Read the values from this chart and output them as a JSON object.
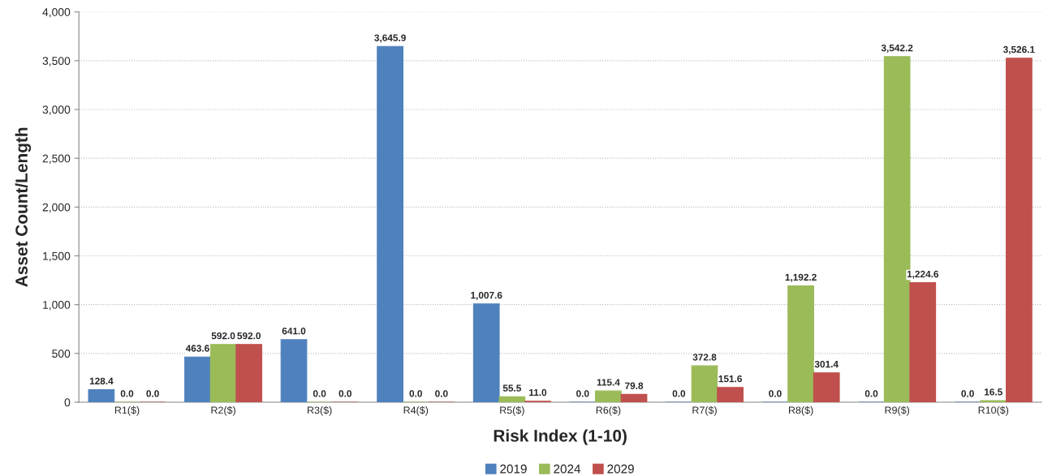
{
  "chart_data": {
    "type": "bar",
    "xlabel": "Risk Index (1-10)",
    "ylabel": "Asset Count/Length",
    "categories": [
      "R1($)",
      "R2($)",
      "R3($)",
      "R4($)",
      "R5($)",
      "R6($)",
      "R7($)",
      "R8($)",
      "R9($)",
      "R10($)"
    ],
    "series": [
      {
        "name": "2019",
        "color": "#4f81bd",
        "values": [
          128.4,
          463.6,
          641.0,
          3645.9,
          1007.6,
          0.0,
          0.0,
          0.0,
          0.0,
          0.0
        ],
        "value_labels": [
          "128.4",
          "463.6",
          "641.0",
          "3,645.9",
          "1,007.6",
          "0.0",
          "0.0",
          "0.0",
          "0.0",
          "0.0"
        ]
      },
      {
        "name": "2024",
        "color": "#9bbb59",
        "values": [
          0.0,
          592.0,
          0.0,
          0.0,
          55.5,
          115.4,
          372.8,
          1192.2,
          3542.2,
          16.5
        ],
        "value_labels": [
          "0.0",
          "592.0",
          "0.0",
          "0.0",
          "55.5",
          "115.4",
          "372.8",
          "1,192.2",
          "3,542.2",
          "16.5"
        ]
      },
      {
        "name": "2029",
        "color": "#c0504d",
        "values": [
          0.0,
          592.0,
          0.0,
          0.0,
          11.0,
          79.8,
          151.6,
          301.4,
          1224.6,
          3526.1
        ],
        "value_labels": [
          "0.0",
          "592.0",
          "0.0",
          "0.0",
          "11.0",
          "79.8",
          "151.6",
          "301.4",
          "1,224.6",
          "3,526.1"
        ]
      }
    ],
    "ylim": [
      0,
      4000
    ],
    "yticks": [
      0,
      500,
      {
        "value": 1000,
        "label": "1,000"
      },
      {
        "value": 1500,
        "label": "1,500"
      },
      {
        "value": 2000,
        "label": "2,000"
      },
      {
        "value": 2500,
        "label": "2,500"
      },
      {
        "value": 3000,
        "label": "3,000"
      },
      {
        "value": 3500,
        "label": "3,500"
      },
      {
        "value": 4000,
        "label": "4,000"
      }
    ],
    "grid": "y",
    "legend": "bottom"
  }
}
